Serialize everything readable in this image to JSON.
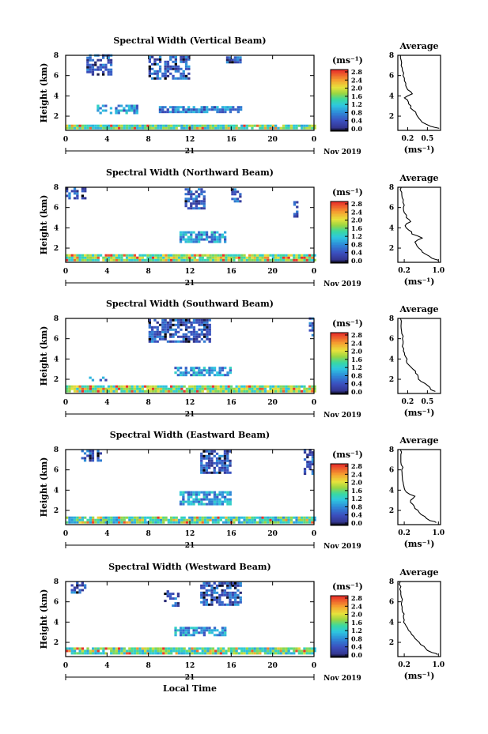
{
  "figure": {
    "xlabel": "Local Time",
    "date_suffix": "Nov 2019",
    "day_label": "21",
    "ylabel": "Height (km)",
    "colorbar_unit": "(ms⁻¹)",
    "avg_title": "Average",
    "avg_xlabel": "(ms⁻¹)"
  },
  "chart_data": [
    {
      "type": "heatmap",
      "title": "Spectral Width (Vertical Beam)",
      "xlabel": "Local Time",
      "ylabel": "Height (km)",
      "xlim": [
        0,
        24
      ],
      "ylim": [
        0.6,
        8
      ],
      "xticks": [
        "0",
        "4",
        "8",
        "12",
        "16",
        "20",
        "0"
      ],
      "yticks": [
        "2",
        "4",
        "6",
        "8"
      ],
      "colorbar": {
        "unit": "(ms⁻¹)",
        "ticks": [
          "0.0",
          "0.4",
          "0.8",
          "1.2",
          "1.6",
          "2.0",
          "2.4",
          "2.8"
        ],
        "range": [
          0,
          3.0
        ]
      },
      "regions": [
        {
          "x": [
            0,
            24
          ],
          "y": [
            0.7,
            1.1
          ],
          "density": 0.95,
          "level": 0.5
        },
        {
          "x": [
            3,
            7
          ],
          "y": [
            2.2,
            3.0
          ],
          "density": 0.65,
          "level": 0.3
        },
        {
          "x": [
            9,
            17
          ],
          "y": [
            2.3,
            3.0
          ],
          "density": 0.75,
          "level": 0.25
        },
        {
          "x": [
            2,
            4.5
          ],
          "y": [
            6.0,
            7.9
          ],
          "density": 0.55,
          "level": 0.15
        },
        {
          "x": [
            8,
            12
          ],
          "y": [
            5.6,
            7.9
          ],
          "density": 0.7,
          "level": 0.15
        },
        {
          "x": [
            15.5,
            17
          ],
          "y": [
            7.2,
            7.9
          ],
          "density": 0.8,
          "level": 0.15
        }
      ],
      "average": {
        "title": "Average",
        "xlabel": "(ms⁻¹)",
        "xlim": [
          0.05,
          0.7
        ],
        "xticks": [
          "0.2",
          "0.5"
        ],
        "ylim": [
          0.6,
          8
        ],
        "yticks": [
          "2",
          "4",
          "6",
          "8"
        ],
        "height": [
          0.8,
          1.0,
          1.4,
          1.8,
          2.2,
          2.6,
          3.0,
          3.4,
          3.8,
          4.2,
          4.6,
          5.0,
          5.5,
          6.0,
          6.5,
          7.0,
          7.5,
          8.0
        ],
        "value": [
          0.68,
          0.55,
          0.42,
          0.37,
          0.33,
          0.28,
          0.25,
          0.21,
          0.15,
          0.27,
          0.2,
          0.17,
          0.15,
          0.13,
          0.12,
          0.1,
          0.1,
          0.09
        ]
      }
    },
    {
      "type": "heatmap",
      "title": "Spectral Width (Northward Beam)",
      "xlabel": "Local Time",
      "ylabel": "Height (km)",
      "xlim": [
        0,
        24
      ],
      "ylim": [
        0.6,
        8
      ],
      "xticks": [
        "0",
        "4",
        "8",
        "12",
        "16",
        "20",
        "0"
      ],
      "yticks": [
        "2",
        "4",
        "6",
        "8"
      ],
      "colorbar": {
        "unit": "(ms⁻¹)",
        "ticks": [
          "0.0",
          "0.4",
          "0.8",
          "1.2",
          "1.6",
          "2.0",
          "2.4",
          "2.8"
        ],
        "range": [
          0,
          3.0
        ]
      },
      "regions": [
        {
          "x": [
            0,
            24
          ],
          "y": [
            0.7,
            1.3
          ],
          "density": 0.95,
          "level": 0.55
        },
        {
          "x": [
            11,
            15.5
          ],
          "y": [
            2.5,
            3.5
          ],
          "density": 0.8,
          "level": 0.3
        },
        {
          "x": [
            0,
            2
          ],
          "y": [
            6.8,
            7.9
          ],
          "density": 0.55,
          "level": 0.15
        },
        {
          "x": [
            11.5,
            13.5
          ],
          "y": [
            5.8,
            7.9
          ],
          "density": 0.7,
          "level": 0.15
        },
        {
          "x": [
            16,
            17
          ],
          "y": [
            6.5,
            7.9
          ],
          "density": 0.5,
          "level": 0.15
        },
        {
          "x": [
            22,
            22.5
          ],
          "y": [
            5.0,
            6.5
          ],
          "density": 0.5,
          "level": 0.15
        }
      ],
      "average": {
        "title": "Average",
        "xlabel": "(ms⁻¹)",
        "xlim": [
          0.05,
          1.05
        ],
        "xticks": [
          "0.2",
          "1.0"
        ],
        "ylim": [
          0.6,
          8
        ],
        "yticks": [
          "2",
          "4",
          "6",
          "8"
        ],
        "height": [
          0.8,
          1.0,
          1.4,
          1.8,
          2.2,
          2.6,
          3.0,
          3.4,
          3.8,
          4.2,
          4.6,
          5.0,
          5.5,
          6.0,
          6.5,
          7.0,
          7.5,
          8.0
        ],
        "value": [
          1.0,
          0.85,
          0.7,
          0.6,
          0.5,
          0.45,
          0.62,
          0.38,
          0.3,
          0.22,
          0.35,
          0.25,
          0.2,
          0.18,
          0.17,
          0.15,
          0.14,
          0.13
        ]
      }
    },
    {
      "type": "heatmap",
      "title": "Spectral Width (Southward Beam)",
      "xlabel": "Local Time",
      "ylabel": "Height (km)",
      "xlim": [
        0,
        24
      ],
      "ylim": [
        0.6,
        8
      ],
      "xticks": [
        "0",
        "4",
        "8",
        "12",
        "16",
        "20",
        "0"
      ],
      "yticks": [
        "2",
        "4",
        "6",
        "8"
      ],
      "colorbar": {
        "unit": "(ms⁻¹)",
        "ticks": [
          "0.0",
          "0.4",
          "0.8",
          "1.2",
          "1.6",
          "2.0",
          "2.4",
          "2.8"
        ],
        "range": [
          0,
          3.0
        ]
      },
      "regions": [
        {
          "x": [
            0,
            24
          ],
          "y": [
            0.7,
            1.2
          ],
          "density": 0.95,
          "level": 0.55
        },
        {
          "x": [
            10.5,
            16
          ],
          "y": [
            2.3,
            3.2
          ],
          "density": 0.7,
          "level": 0.3
        },
        {
          "x": [
            2,
            4
          ],
          "y": [
            1.8,
            2.2
          ],
          "density": 0.5,
          "level": 0.25
        },
        {
          "x": [
            8,
            14
          ],
          "y": [
            5.6,
            7.9
          ],
          "density": 0.75,
          "level": 0.15
        },
        {
          "x": [
            23.5,
            24
          ],
          "y": [
            6.0,
            7.9
          ],
          "density": 0.6,
          "level": 0.15
        }
      ],
      "average": {
        "title": "Average",
        "xlabel": "(ms⁻¹)",
        "xlim": [
          0.05,
          0.7
        ],
        "xticks": [
          "0.2",
          "0.5"
        ],
        "ylim": [
          0.6,
          8
        ],
        "yticks": [
          "2",
          "4",
          "6",
          "8"
        ],
        "height": [
          0.8,
          1.0,
          1.4,
          1.8,
          2.2,
          2.6,
          3.0,
          3.4,
          3.8,
          4.2,
          4.6,
          5.0,
          5.5,
          6.0,
          6.5,
          7.0,
          7.5,
          8.0
        ],
        "value": [
          0.62,
          0.55,
          0.5,
          0.4,
          0.36,
          0.32,
          0.28,
          0.22,
          0.18,
          0.17,
          0.15,
          0.14,
          0.13,
          0.12,
          0.11,
          0.1,
          0.1,
          0.09
        ]
      }
    },
    {
      "type": "heatmap",
      "title": "Spectral Width (Eastward Beam)",
      "xlabel": "Local Time",
      "ylabel": "Height (km)",
      "xlim": [
        0,
        24
      ],
      "ylim": [
        0.6,
        8
      ],
      "xticks": [
        "0",
        "4",
        "8",
        "12",
        "16",
        "20",
        "0"
      ],
      "yticks": [
        "2",
        "4",
        "6",
        "8"
      ],
      "colorbar": {
        "unit": "(ms⁻¹)",
        "ticks": [
          "0.0",
          "0.4",
          "0.8",
          "1.2",
          "1.6",
          "2.0",
          "2.4",
          "2.8"
        ],
        "range": [
          0,
          3.0
        ]
      },
      "regions": [
        {
          "x": [
            0,
            24
          ],
          "y": [
            0.7,
            1.2
          ],
          "density": 0.95,
          "level": 0.45
        },
        {
          "x": [
            11,
            16
          ],
          "y": [
            2.5,
            3.8
          ],
          "density": 0.75,
          "level": 0.3
        },
        {
          "x": [
            1.5,
            3.5
          ],
          "y": [
            6.8,
            7.9
          ],
          "density": 0.5,
          "level": 0.15
        },
        {
          "x": [
            13,
            16
          ],
          "y": [
            5.6,
            7.9
          ],
          "density": 0.75,
          "level": 0.15
        },
        {
          "x": [
            23,
            24
          ],
          "y": [
            5.5,
            7.9
          ],
          "density": 0.6,
          "level": 0.15
        }
      ],
      "average": {
        "title": "Average",
        "xlabel": "(ms⁻¹)",
        "xlim": [
          0.05,
          1.05
        ],
        "xticks": [
          "0.2",
          "1.0"
        ],
        "ylim": [
          0.6,
          8
        ],
        "yticks": [
          "2",
          "4",
          "6",
          "8"
        ],
        "height": [
          0.8,
          1.0,
          1.4,
          1.8,
          2.2,
          2.6,
          3.0,
          3.4,
          3.8,
          4.2,
          4.6,
          5.0,
          5.5,
          6.0,
          6.5,
          7.0,
          7.5,
          8.0
        ],
        "value": [
          0.95,
          0.8,
          0.68,
          0.55,
          0.45,
          0.4,
          0.35,
          0.45,
          0.25,
          0.2,
          0.18,
          0.16,
          0.15,
          0.14,
          0.13,
          0.12,
          0.12,
          0.11
        ]
      }
    },
    {
      "type": "heatmap",
      "title": "Spectral Width (Westward Beam)",
      "xlabel": "Local Time",
      "ylabel": "Height (km)",
      "xlim": [
        0,
        24
      ],
      "ylim": [
        0.6,
        8
      ],
      "xticks": [
        "0",
        "4",
        "8",
        "12",
        "16",
        "20",
        "0"
      ],
      "yticks": [
        "2",
        "4",
        "6",
        "8"
      ],
      "colorbar": {
        "unit": "(ms⁻¹)",
        "ticks": [
          "0.0",
          "0.4",
          "0.8",
          "1.2",
          "1.6",
          "2.0",
          "2.4",
          "2.8"
        ],
        "range": [
          0,
          3.0
        ]
      },
      "regions": [
        {
          "x": [
            0,
            24
          ],
          "y": [
            0.8,
            1.3
          ],
          "density": 0.95,
          "level": 0.5
        },
        {
          "x": [
            10.5,
            15.5
          ],
          "y": [
            2.6,
            3.5
          ],
          "density": 0.75,
          "level": 0.3
        },
        {
          "x": [
            0.5,
            2
          ],
          "y": [
            6.8,
            7.9
          ],
          "density": 0.45,
          "level": 0.15
        },
        {
          "x": [
            13,
            17
          ],
          "y": [
            5.6,
            7.9
          ],
          "density": 0.75,
          "level": 0.15
        },
        {
          "x": [
            9.5,
            11
          ],
          "y": [
            5.5,
            7.0
          ],
          "density": 0.45,
          "level": 0.15
        }
      ],
      "average": {
        "title": "Average",
        "xlabel": "(ms⁻¹)",
        "xlim": [
          0.05,
          1.05
        ],
        "xticks": [
          "0.2",
          "1.0"
        ],
        "ylim": [
          0.6,
          8
        ],
        "yticks": [
          "2",
          "4",
          "6",
          "8"
        ],
        "height": [
          0.8,
          1.0,
          1.4,
          1.8,
          2.2,
          2.6,
          3.0,
          3.4,
          3.8,
          4.2,
          4.6,
          5.0,
          5.5,
          6.0,
          6.5,
          7.0,
          7.5,
          8.0
        ],
        "value": [
          0.98,
          0.85,
          0.7,
          0.58,
          0.5,
          0.42,
          0.35,
          0.28,
          0.22,
          0.2,
          0.18,
          0.16,
          0.15,
          0.14,
          0.13,
          0.12,
          0.12,
          0.11
        ]
      }
    }
  ]
}
